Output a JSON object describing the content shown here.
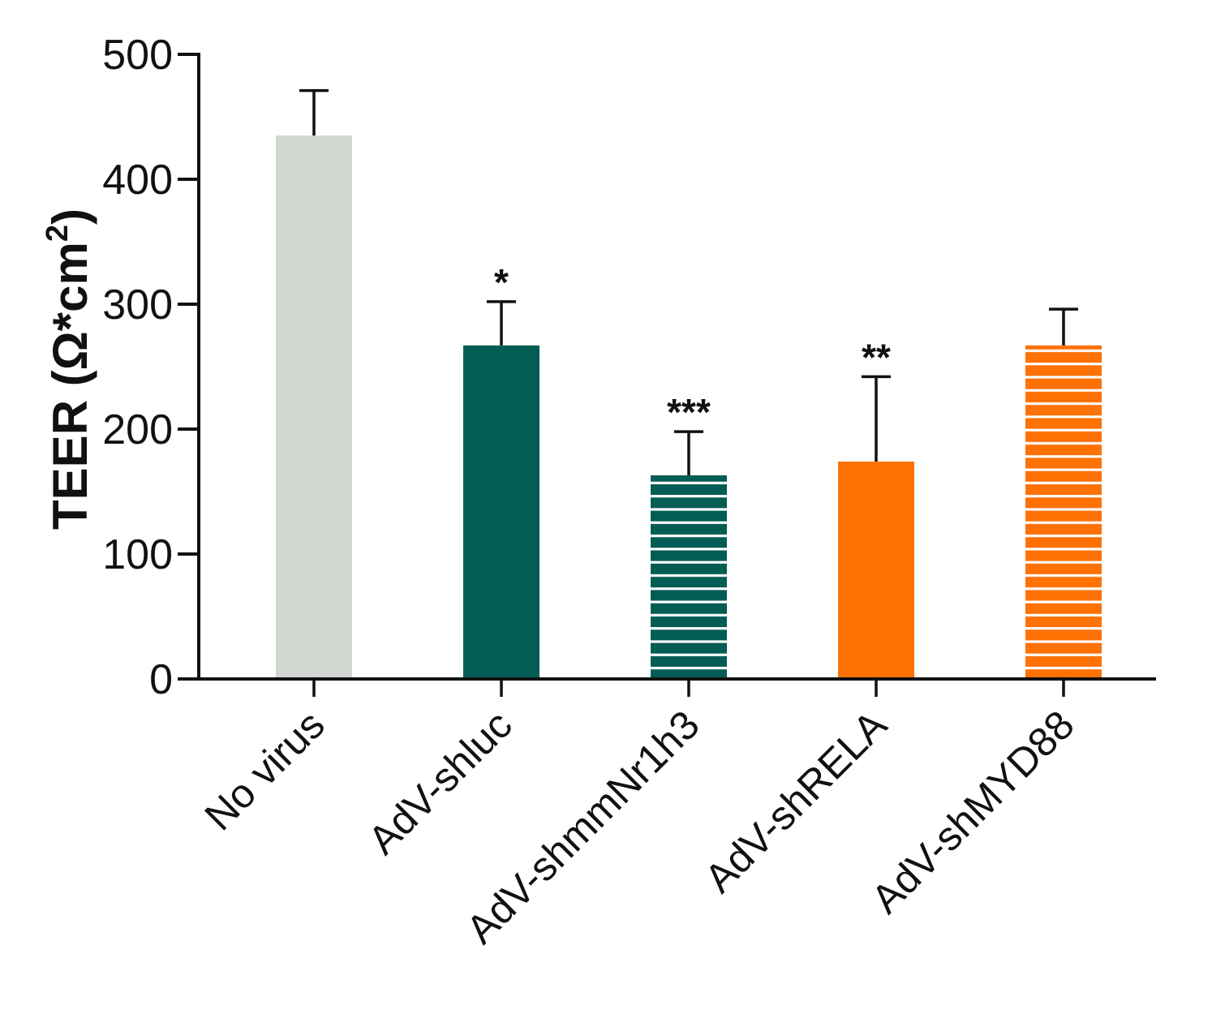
{
  "chart_data": {
    "type": "bar",
    "ylabel": {
      "main": "TEER (Ω*cm",
      "superscript": "2",
      "close": ")"
    },
    "ylim": [
      0,
      500
    ],
    "yticks": [
      0,
      100,
      200,
      300,
      400,
      500
    ],
    "yticks_labels": [
      "0",
      "100",
      "200",
      "300",
      "400",
      "500"
    ],
    "categories": [
      "No virus",
      "AdV-shluc",
      "AdV-shmmNr1h3",
      "AdV-shRELA",
      "AdV-shMYD88"
    ],
    "values": [
      435,
      267,
      163,
      174,
      267
    ],
    "errors": [
      36,
      35,
      35,
      68,
      29
    ],
    "significance": [
      "",
      "*",
      "***",
      "**",
      ""
    ],
    "bar_colors": [
      "#d2d6d1",
      "#035d55",
      "#035d55",
      "#fe7105",
      "#fe7105"
    ],
    "bar_patterns": [
      "solid",
      "solid",
      "striped",
      "solid",
      "striped"
    ],
    "grid": false,
    "legend": "none"
  }
}
